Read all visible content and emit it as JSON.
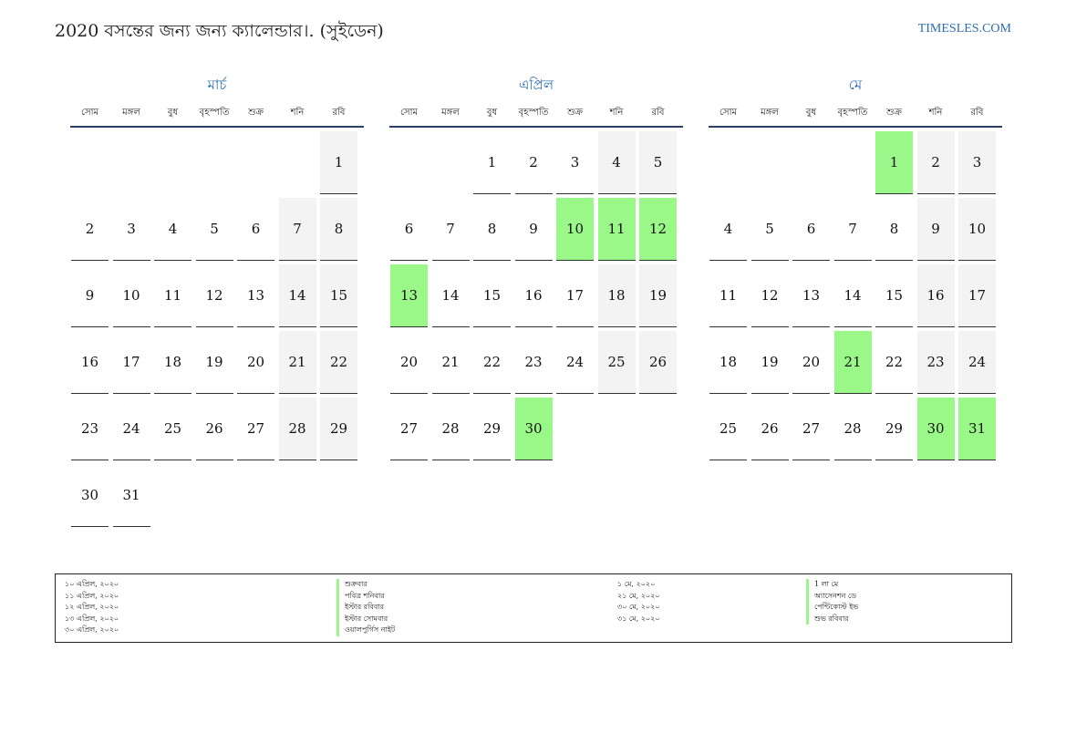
{
  "header": {
    "title": "2020 বসন্তের জন্য জন্য ক্যালেন্ডার।. (সুইডেন)",
    "site": "TIMESLES.COM"
  },
  "colors": {
    "accent": "#2b6cb0",
    "holiday": "#99f888",
    "weekend": "#f3f3f3"
  },
  "weekdays": [
    "সোম",
    "মঙ্গল",
    "বুধ",
    "বৃহস্পতি",
    "শুক্র",
    "শনি",
    "রবি"
  ],
  "months": [
    {
      "name": "মার্চ",
      "weeks": [
        [
          "",
          "",
          "",
          "",
          "",
          "",
          "1"
        ],
        [
          "2",
          "3",
          "4",
          "5",
          "6",
          "7",
          "8"
        ],
        [
          "9",
          "10",
          "11",
          "12",
          "13",
          "14",
          "15"
        ],
        [
          "16",
          "17",
          "18",
          "19",
          "20",
          "21",
          "22"
        ],
        [
          "23",
          "24",
          "25",
          "26",
          "27",
          "28",
          "29"
        ],
        [
          "30",
          "31",
          "",
          "",
          "",
          "",
          ""
        ]
      ],
      "holidays": []
    },
    {
      "name": "এপ্রিল",
      "weeks": [
        [
          "",
          "",
          "1",
          "2",
          "3",
          "4",
          "5"
        ],
        [
          "6",
          "7",
          "8",
          "9",
          "10",
          "11",
          "12"
        ],
        [
          "13",
          "14",
          "15",
          "16",
          "17",
          "18",
          "19"
        ],
        [
          "20",
          "21",
          "22",
          "23",
          "24",
          "25",
          "26"
        ],
        [
          "27",
          "28",
          "29",
          "30",
          "",
          "",
          ""
        ]
      ],
      "holidays": [
        "10",
        "11",
        "12",
        "13",
        "30"
      ]
    },
    {
      "name": "মে",
      "weeks": [
        [
          "",
          "",
          "",
          "",
          "1",
          "2",
          "3"
        ],
        [
          "4",
          "5",
          "6",
          "7",
          "8",
          "9",
          "10"
        ],
        [
          "11",
          "12",
          "13",
          "14",
          "15",
          "16",
          "17"
        ],
        [
          "18",
          "19",
          "20",
          "21",
          "22",
          "23",
          "24"
        ],
        [
          "25",
          "26",
          "27",
          "28",
          "29",
          "30",
          "31"
        ]
      ],
      "holidays": [
        "1",
        "21",
        "30",
        "31"
      ]
    }
  ],
  "legend": {
    "left": [
      {
        "date": "১০ এপ্রিল, ২০২০",
        "name": "শুক্রবার"
      },
      {
        "date": "১১ এপ্রিল, ২০২০",
        "name": "পবিত্র শনিবার"
      },
      {
        "date": "১২ এপ্রিল, ২০২০",
        "name": "ইস্টার রবিবার"
      },
      {
        "date": "১৩ এপ্রিল, ২০২০",
        "name": "ইস্টার সোমবার"
      },
      {
        "date": "৩০ এপ্রিল, ২০২০",
        "name": "ওয়ালপুর্গিস নাইট"
      }
    ],
    "right": [
      {
        "date": "১ মে, ২০২০",
        "name": "1 লা মে"
      },
      {
        "date": "২১ মে, ২০২০",
        "name": "অ্যাসেনশন ডে"
      },
      {
        "date": "৩০ মে, ২০২০",
        "name": "পেন্টিকোস্ট ইভ"
      },
      {
        "date": "৩১ মে, ২০২০",
        "name": "শুভ রবিবার"
      }
    ]
  }
}
